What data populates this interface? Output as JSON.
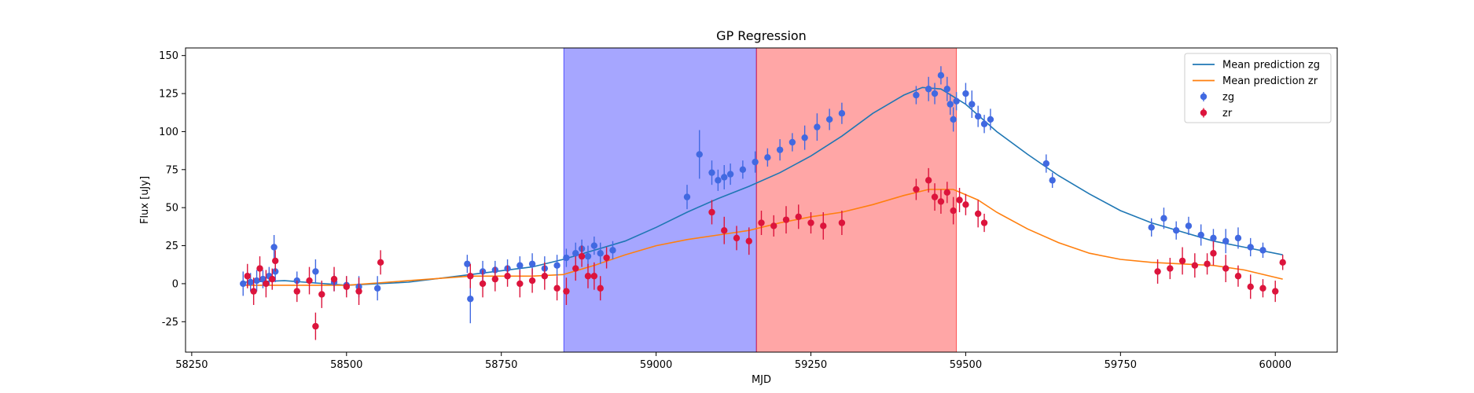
{
  "chart_data": {
    "type": "scatter",
    "title": "GP Regression",
    "xlabel": "MJD",
    "ylabel": "Flux [uJy]",
    "xlim": [
      58240,
      60100
    ],
    "ylim": [
      -45,
      155
    ],
    "xticks": [
      58250,
      58500,
      58750,
      59000,
      59250,
      59500,
      59750,
      60000
    ],
    "yticks": [
      -25,
      0,
      25,
      50,
      75,
      100,
      125,
      150
    ],
    "grid": false,
    "legend_position": "top-right",
    "shaded_regions": [
      {
        "x0": 58851,
        "x1": 59162,
        "color": "#0000ff",
        "opacity": 0.35
      },
      {
        "x0": 59162,
        "x1": 59485,
        "color": "#ff0000",
        "opacity": 0.35
      }
    ],
    "series": [
      {
        "name": "Mean prediction zg",
        "kind": "line",
        "color": "#1f77b4",
        "x": [
          58333,
          58400,
          58500,
          58600,
          58700,
          58800,
          58850,
          58900,
          58950,
          59000,
          59050,
          59100,
          59150,
          59200,
          59250,
          59300,
          59350,
          59400,
          59430,
          59460,
          59500,
          59550,
          59600,
          59650,
          59700,
          59750,
          59800,
          59850,
          59900,
          59950,
          60012
        ],
        "y": [
          1,
          2,
          -1,
          1,
          6,
          11,
          16,
          22,
          28,
          37,
          47,
          56,
          64,
          73,
          84,
          97,
          112,
          124,
          129,
          128,
          118,
          100,
          85,
          71,
          59,
          48,
          40,
          34,
          28,
          24,
          19
        ]
      },
      {
        "name": "Mean prediction zr",
        "kind": "line",
        "color": "#ff7f0e",
        "x": [
          58333,
          58400,
          58500,
          58600,
          58700,
          58800,
          58850,
          58900,
          58950,
          59000,
          59050,
          59100,
          59150,
          59200,
          59250,
          59300,
          59350,
          59400,
          59440,
          59480,
          59520,
          59550,
          59600,
          59650,
          59700,
          59750,
          59800,
          59850,
          59900,
          59950,
          60012
        ],
        "y": [
          -1,
          -1,
          -1,
          2,
          5,
          5,
          6,
          12,
          19,
          25,
          29,
          32,
          35,
          40,
          44,
          47,
          52,
          58,
          62,
          62,
          55,
          47,
          36,
          27,
          20,
          16,
          14,
          13,
          12,
          9,
          3
        ]
      },
      {
        "name": "zg",
        "kind": "errorbar",
        "color": "#4169e1",
        "x": [
          58333,
          58345,
          58355,
          58365,
          58375,
          58383,
          58385,
          58420,
          58450,
          58480,
          58500,
          58520,
          58550,
          58695,
          58700,
          58720,
          58740,
          58760,
          58780,
          58800,
          58820,
          58840,
          58855,
          58870,
          58880,
          58890,
          58900,
          58910,
          58930,
          59050,
          59070,
          59090,
          59100,
          59110,
          59120,
          59140,
          59160,
          59180,
          59200,
          59220,
          59240,
          59260,
          59280,
          59300,
          59420,
          59440,
          59450,
          59460,
          59470,
          59475,
          59480,
          59485,
          59500,
          59510,
          59520,
          59530,
          59540,
          59630,
          59640,
          59800,
          59820,
          59840,
          59860,
          59880,
          59900,
          59920,
          59940,
          59960,
          59980
        ],
        "y": [
          0,
          1,
          2,
          3,
          5,
          24,
          8,
          2,
          8,
          1,
          -1,
          -2,
          -3,
          13,
          -10,
          8,
          9,
          10,
          12,
          13,
          10,
          12,
          17,
          20,
          23,
          18,
          25,
          20,
          22,
          57,
          85,
          73,
          68,
          70,
          72,
          75,
          80,
          83,
          88,
          93,
          96,
          103,
          108,
          112,
          124,
          128,
          125,
          137,
          128,
          118,
          108,
          120,
          125,
          118,
          110,
          105,
          108,
          79,
          68,
          37,
          43,
          35,
          38,
          32,
          30,
          28,
          30,
          24,
          22
        ],
        "err": [
          8,
          6,
          7,
          6,
          6,
          8,
          7,
          6,
          8,
          6,
          6,
          7,
          8,
          6,
          16,
          7,
          6,
          6,
          6,
          7,
          8,
          7,
          6,
          7,
          6,
          7,
          6,
          7,
          6,
          8,
          16,
          8,
          7,
          8,
          7,
          6,
          7,
          6,
          7,
          6,
          8,
          9,
          7,
          7,
          6,
          8,
          7,
          6,
          8,
          7,
          8,
          6,
          7,
          9,
          7,
          6,
          7,
          6,
          5,
          6,
          7,
          6,
          6,
          7,
          6,
          8,
          7,
          6,
          5
        ]
      },
      {
        "name": "zr",
        "kind": "errorbar",
        "color": "#dc143c",
        "x": [
          58340,
          58350,
          58360,
          58370,
          58380,
          58385,
          58420,
          58440,
          58450,
          58460,
          58480,
          58500,
          58520,
          58555,
          58700,
          58720,
          58740,
          58760,
          58780,
          58800,
          58820,
          58840,
          58855,
          58870,
          58880,
          58890,
          58900,
          58910,
          58920,
          59090,
          59110,
          59130,
          59150,
          59170,
          59190,
          59210,
          59230,
          59250,
          59270,
          59300,
          59420,
          59440,
          59450,
          59460,
          59470,
          59480,
          59490,
          59500,
          59520,
          59530,
          59810,
          59830,
          59850,
          59870,
          59890,
          59900,
          59920,
          59940,
          59960,
          59980,
          60000,
          60012
        ],
        "y": [
          5,
          -5,
          10,
          0,
          3,
          15,
          -5,
          2,
          -28,
          -7,
          3,
          -2,
          -5,
          14,
          5,
          0,
          3,
          5,
          0,
          2,
          5,
          -3,
          -5,
          10,
          18,
          5,
          5,
          -3,
          17,
          47,
          35,
          30,
          28,
          40,
          38,
          42,
          44,
          40,
          38,
          40,
          62,
          68,
          57,
          54,
          60,
          48,
          55,
          52,
          46,
          40,
          8,
          10,
          15,
          12,
          13,
          20,
          10,
          5,
          -2,
          -3,
          -5,
          14
        ],
        "err": [
          8,
          9,
          8,
          9,
          7,
          7,
          7,
          9,
          9,
          9,
          8,
          7,
          9,
          8,
          8,
          9,
          8,
          7,
          9,
          8,
          9,
          8,
          9,
          8,
          7,
          8,
          9,
          8,
          7,
          8,
          9,
          8,
          9,
          8,
          7,
          9,
          8,
          7,
          9,
          8,
          7,
          8,
          9,
          8,
          7,
          9,
          8,
          7,
          9,
          6,
          8,
          7,
          9,
          8,
          7,
          8,
          9,
          7,
          8,
          6,
          7,
          5
        ]
      }
    ]
  },
  "legend": {
    "items": [
      {
        "label": "Mean prediction zg",
        "kind": "line",
        "color": "#1f77b4"
      },
      {
        "label": "Mean prediction zr",
        "kind": "line",
        "color": "#ff7f0e"
      },
      {
        "label": "zg",
        "kind": "errorbar",
        "color": "#4169e1"
      },
      {
        "label": "zr",
        "kind": "errorbar",
        "color": "#dc143c"
      }
    ]
  }
}
